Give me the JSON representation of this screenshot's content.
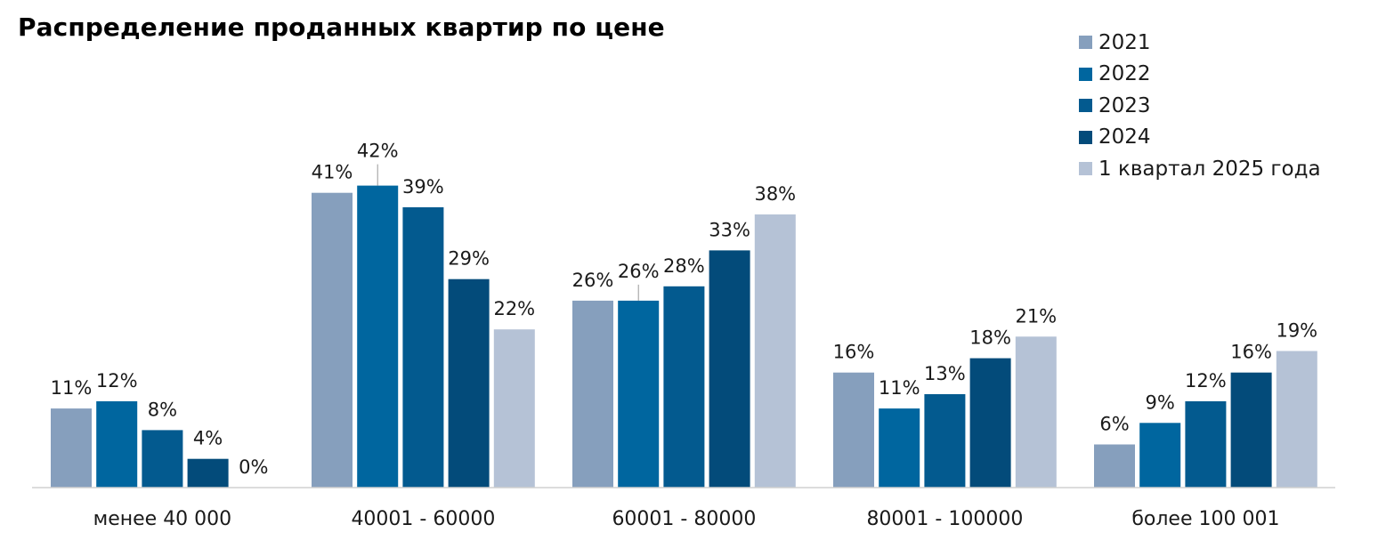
{
  "chart_data": {
    "type": "bar",
    "title": "Распределение проданных квартир по цене",
    "categories": [
      "менее 40 000",
      "40001 - 60000",
      "60001 - 80000",
      "80001 - 100000",
      "более 100 001"
    ],
    "series": [
      {
        "name": "2021",
        "color": "#869fbd",
        "values": [
          11,
          41,
          26,
          16,
          6
        ],
        "labels": [
          "11%",
          "41%",
          "26%",
          "16%",
          "6%"
        ]
      },
      {
        "name": "2022",
        "color": "#00669f",
        "values": [
          12,
          42,
          26,
          11,
          9
        ],
        "labels": [
          "12%",
          "42%",
          "26%",
          "11%",
          "9%"
        ]
      },
      {
        "name": "2023",
        "color": "#035a8f",
        "values": [
          8,
          39,
          28,
          13,
          12
        ],
        "labels": [
          "8%",
          "39%",
          "28%",
          "13%",
          "12%"
        ]
      },
      {
        "name": "2024",
        "color": "#034b7a",
        "values": [
          4,
          29,
          33,
          18,
          16
        ],
        "labels": [
          "4%",
          "29%",
          "33%",
          "18%",
          "16%"
        ]
      },
      {
        "name": "1 квартал 2025 года",
        "color": "#b5c2d6",
        "values": [
          0,
          22,
          38,
          21,
          19
        ],
        "labels": [
          "0%",
          "22%",
          "38%",
          "21%",
          "19%"
        ]
      }
    ],
    "xlabel": "",
    "ylabel": "",
    "legend_position": "top-right",
    "grid": false
  }
}
